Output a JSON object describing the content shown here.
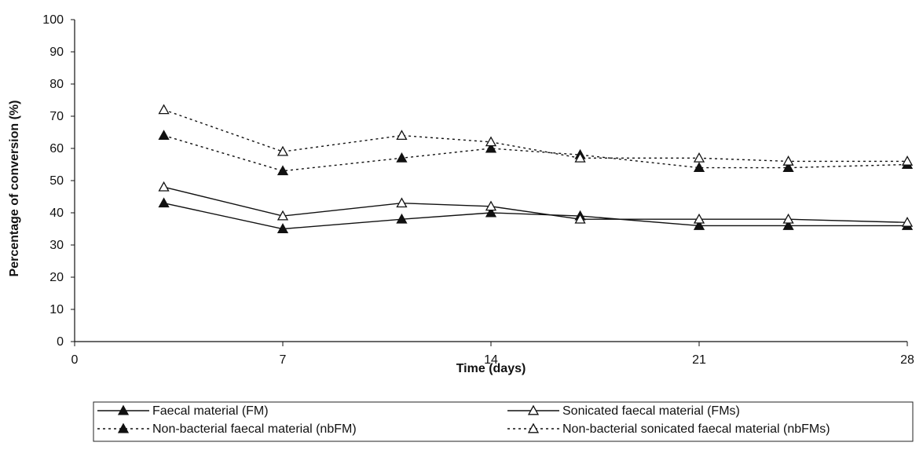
{
  "chart_data": {
    "type": "line",
    "title": "",
    "xlabel": "Time (days)",
    "ylabel": "Percentage of conversion (%)",
    "xlim": [
      0,
      28
    ],
    "ylim": [
      0,
      100
    ],
    "xticks": [
      0,
      7,
      14,
      21,
      28
    ],
    "yticks": [
      0,
      10,
      20,
      30,
      40,
      50,
      60,
      70,
      80,
      90,
      100
    ],
    "grid": false,
    "legend_position": "bottom",
    "series": [
      {
        "name": "Faecal material (FM)",
        "line_style": "solid",
        "marker": "filled-triangle",
        "x": [
          3,
          7,
          11,
          14,
          17,
          21,
          24,
          28
        ],
        "y": [
          43,
          35,
          38,
          40,
          39,
          36,
          36,
          36
        ]
      },
      {
        "name": "Sonicated faecal material (FMs)",
        "line_style": "solid",
        "marker": "open-triangle",
        "x": [
          3,
          7,
          11,
          14,
          17,
          21,
          24,
          28
        ],
        "y": [
          48,
          39,
          43,
          42,
          38,
          38,
          38,
          37
        ]
      },
      {
        "name": "Non-bacterial faecal material (nbFM)",
        "line_style": "dotted",
        "marker": "filled-triangle",
        "x": [
          3,
          7,
          11,
          14,
          17,
          21,
          24,
          28
        ],
        "y": [
          64,
          53,
          57,
          60,
          58,
          54,
          54,
          55
        ]
      },
      {
        "name": "Non-bacterial sonicated faecal material (nbFMs)",
        "line_style": "dotted",
        "marker": "open-triangle",
        "x": [
          3,
          7,
          11,
          14,
          17,
          21,
          24,
          28
        ],
        "y": [
          72,
          59,
          64,
          62,
          57,
          57,
          56,
          56
        ]
      }
    ]
  }
}
